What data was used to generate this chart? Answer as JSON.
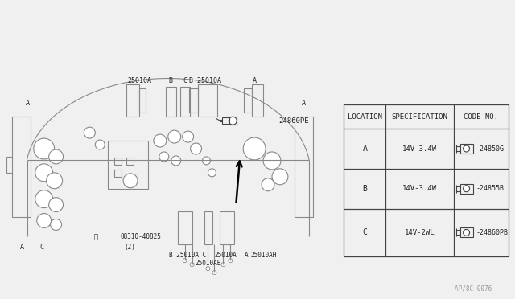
{
  "bg_color": "#f0f0f0",
  "line_color": "#888888",
  "dark_line": "#444444",
  "table_header": [
    "LOCATION",
    "SPECIFICATION",
    "CODE NO."
  ],
  "table_rows": [
    [
      "A",
      "14V-3.4W",
      "24850G"
    ],
    [
      "B",
      "14V-3.4W",
      "24855B"
    ],
    [
      "C",
      "14V-2WL",
      "24860PB"
    ]
  ],
  "label_24860PE": "24860PE",
  "page_ref": "AP/8C 0076",
  "font_color": "#222222",
  "gray_color": "#999999"
}
